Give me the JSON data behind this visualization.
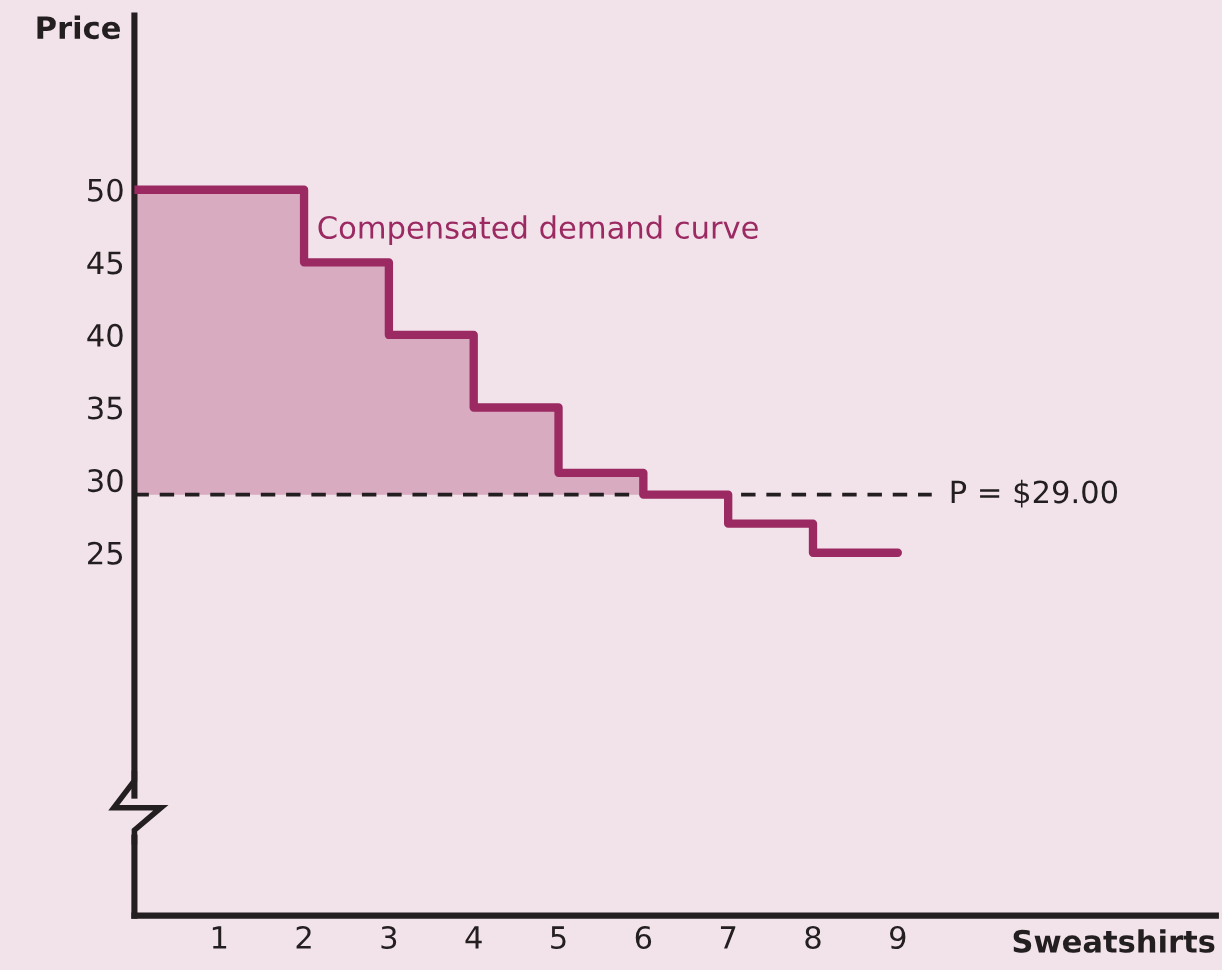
{
  "chart_data": {
    "type": "step",
    "xlabel": "Sweatshirts",
    "ylabel": "Price",
    "x": [
      0,
      2,
      3,
      4,
      5,
      6,
      7,
      8,
      9
    ],
    "series": [
      {
        "name": "Compensated demand curve",
        "color": "#9b2a62",
        "values": [
          50,
          45,
          40,
          35,
          30.5,
          29,
          27,
          25,
          25
        ]
      }
    ],
    "xlim": [
      0,
      12.75
    ],
    "xticks": [
      1,
      2,
      3,
      4,
      5,
      6,
      7,
      8,
      9
    ],
    "ylim": [
      0,
      62
    ],
    "yticks": [
      25,
      30,
      35,
      40,
      45,
      50
    ],
    "ref_lines": [
      {
        "axis": "y",
        "value": 29,
        "label": "P = $29.00",
        "color": "#231f20",
        "line_style": "dashed"
      }
    ],
    "grid": false,
    "legend": false
  }
}
